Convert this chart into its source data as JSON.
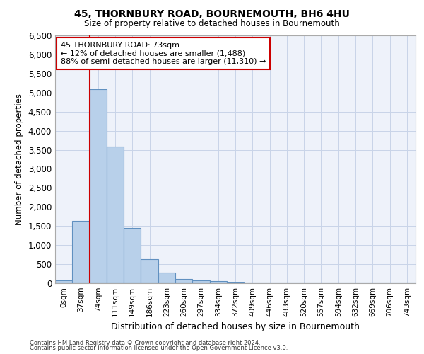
{
  "title": "45, THORNBURY ROAD, BOURNEMOUTH, BH6 4HU",
  "subtitle": "Size of property relative to detached houses in Bournemouth",
  "xlabel": "Distribution of detached houses by size in Bournemouth",
  "ylabel": "Number of detached properties",
  "categories": [
    "0sqm",
    "37sqm",
    "74sqm",
    "111sqm",
    "149sqm",
    "186sqm",
    "223sqm",
    "260sqm",
    "297sqm",
    "334sqm",
    "372sqm",
    "409sqm",
    "446sqm",
    "483sqm",
    "520sqm",
    "557sqm",
    "594sqm",
    "632sqm",
    "669sqm",
    "706sqm",
    "743sqm"
  ],
  "values": [
    70,
    1630,
    5080,
    3580,
    1450,
    640,
    270,
    120,
    80,
    50,
    20,
    8,
    4,
    2,
    1,
    0,
    0,
    0,
    0,
    0,
    0
  ],
  "bar_color": "#b8d0ea",
  "bar_edge_color": "#6090c0",
  "vline_color": "#cc0000",
  "annotation_text": "45 THORNBURY ROAD: 73sqm\n← 12% of detached houses are smaller (1,488)\n88% of semi-detached houses are larger (11,310) →",
  "annotation_box_color": "#cc0000",
  "ylim": [
    0,
    6500
  ],
  "yticks": [
    0,
    500,
    1000,
    1500,
    2000,
    2500,
    3000,
    3500,
    4000,
    4500,
    5000,
    5500,
    6000,
    6500
  ],
  "grid_color": "#c8d4e8",
  "background_color": "#eef2fa",
  "footnote1": "Contains HM Land Registry data © Crown copyright and database right 2024.",
  "footnote2": "Contains public sector information licensed under the Open Government Licence v3.0."
}
